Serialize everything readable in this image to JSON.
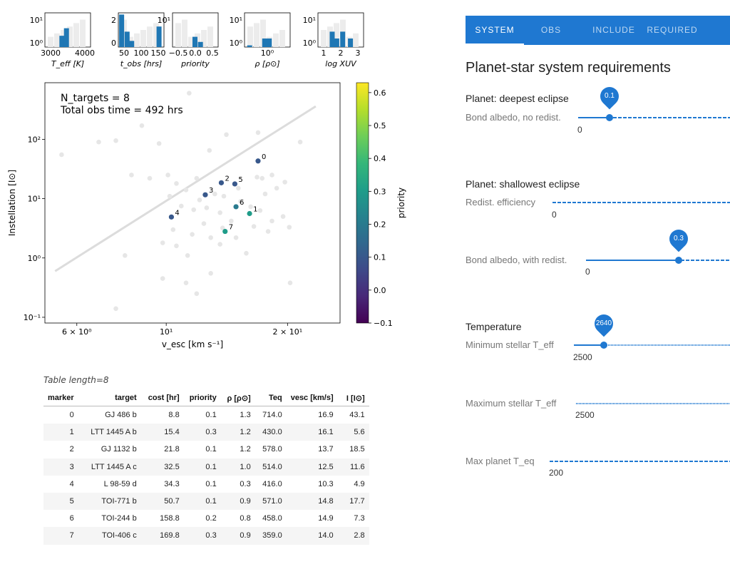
{
  "hist_panels": [
    {
      "xlabel": "T_eff [K]",
      "yticks": [
        "10¹",
        "10⁰"
      ],
      "xticks": [
        "3000",
        "4000"
      ],
      "bars": [
        {
          "x": 0.38,
          "h": 0.33
        },
        {
          "x": 0.48,
          "h": 0.55
        }
      ]
    },
    {
      "xlabel": "t_obs [hrs]",
      "yticks": [
        "2",
        "0"
      ],
      "xticks": [
        "50",
        "100",
        "150"
      ],
      "bars": [
        {
          "x": 0.08,
          "h": 0.95
        },
        {
          "x": 0.2,
          "h": 0.45
        },
        {
          "x": 0.3,
          "h": 0.18
        },
        {
          "x": 0.9,
          "h": 0.6
        }
      ]
    },
    {
      "xlabel": "priority",
      "yticks": [
        "10¹"
      ],
      "xticks": [
        "−0.5",
        "0.0",
        "0.5"
      ],
      "bars": [
        {
          "x": 0.5,
          "h": 0.3
        },
        {
          "x": 0.62,
          "h": 0.15
        }
      ]
    },
    {
      "xlabel": "ρ [ρ⊙]",
      "yticks": [
        "10¹",
        "10⁰"
      ],
      "xticks": [
        "10⁰"
      ],
      "bars": [
        {
          "x": 0.45,
          "h": 0.25
        },
        {
          "x": 0.55,
          "h": 0.25
        },
        {
          "x": 0.12,
          "h": 0.05
        }
      ]
    },
    {
      "xlabel": "log XUV",
      "yticks": [
        "10¹",
        "10⁰"
      ],
      "xticks": [
        "1",
        "2",
        "3"
      ],
      "bars": [
        {
          "x": 0.32,
          "h": 0.45
        },
        {
          "x": 0.42,
          "h": 0.25
        },
        {
          "x": 0.55,
          "h": 0.45
        },
        {
          "x": 0.72,
          "h": 0.25
        }
      ]
    }
  ],
  "chart_data": {
    "type": "scatter",
    "xlabel": "v_esc [km s⁻¹]",
    "ylabel": "Instellation [I⊙]",
    "xscale": "log",
    "yscale": "log",
    "xlim": [
      5.0,
      27.0
    ],
    "ylim": [
      0.08,
      900
    ],
    "xticks": [
      "6 × 10⁰",
      "10¹",
      "2 × 10¹"
    ],
    "yticks": [
      "10⁻¹",
      "10⁰",
      "10¹",
      "10²"
    ],
    "colorbar": {
      "label": "priority",
      "min": -0.1,
      "max": 0.63,
      "ticks": [
        "−0.1",
        "0.0",
        "0.1",
        "0.2",
        "0.3",
        "0.4",
        "0.5",
        "0.6"
      ]
    },
    "annotation_line1": "N_targets = 8",
    "annotation_line2": "Total obs time = 492 hrs",
    "trend_line": [
      [
        5.3,
        0.6
      ],
      [
        23.5,
        360
      ]
    ],
    "background_points": [
      [
        5.5,
        55
      ],
      [
        6.8,
        90
      ],
      [
        7.5,
        95
      ],
      [
        8.7,
        170
      ],
      [
        9.6,
        85
      ],
      [
        11.4,
        600
      ],
      [
        8.2,
        25
      ],
      [
        9.1,
        22
      ],
      [
        10.1,
        25
      ],
      [
        10.6,
        18
      ],
      [
        11.2,
        14
      ],
      [
        11.9,
        22
      ],
      [
        12.8,
        65
      ],
      [
        14.1,
        120
      ],
      [
        16.9,
        130
      ],
      [
        21.5,
        90
      ],
      [
        13.2,
        12
      ],
      [
        12.1,
        9.5
      ],
      [
        13.9,
        11
      ],
      [
        15.1,
        15
      ],
      [
        17.6,
        12
      ],
      [
        18.8,
        15
      ],
      [
        19.7,
        19
      ],
      [
        10.2,
        11
      ],
      [
        10.9,
        7.5
      ],
      [
        11.7,
        6.5
      ],
      [
        12.6,
        7
      ],
      [
        13.6,
        5.8
      ],
      [
        14.5,
        4.2
      ],
      [
        15.3,
        9
      ],
      [
        16.2,
        7.3
      ],
      [
        17.1,
        6.3
      ],
      [
        18.3,
        4.2
      ],
      [
        19.5,
        5
      ],
      [
        10.4,
        3
      ],
      [
        11.6,
        2.5
      ],
      [
        12.4,
        3.8
      ],
      [
        13.8,
        3.2
      ],
      [
        14.9,
        2.2
      ],
      [
        16.5,
        3.4
      ],
      [
        17.9,
        2.8
      ],
      [
        20.2,
        3.3
      ],
      [
        9.8,
        1.8
      ],
      [
        10.6,
        1.6
      ],
      [
        11.3,
        1.1
      ],
      [
        12.9,
        2.2
      ],
      [
        13.6,
        1.7
      ],
      [
        15.8,
        1.2
      ],
      [
        7.9,
        1.1
      ],
      [
        9.8,
        0.45
      ],
      [
        11.2,
        0.38
      ],
      [
        11.9,
        0.25
      ],
      [
        12.9,
        0.55
      ],
      [
        20.3,
        0.38
      ],
      [
        7.5,
        0.14
      ],
      [
        18.3,
        25
      ],
      [
        17.3,
        22
      ],
      [
        16.8,
        23
      ]
    ],
    "points": [
      {
        "label": "0",
        "x": 16.9,
        "y": 43.1,
        "priority": 0.1
      },
      {
        "label": "1",
        "x": 16.1,
        "y": 5.6,
        "priority": 0.3
      },
      {
        "label": "2",
        "x": 13.7,
        "y": 18.5,
        "priority": 0.1
      },
      {
        "label": "3",
        "x": 12.5,
        "y": 11.6,
        "priority": 0.1
      },
      {
        "label": "4",
        "x": 10.3,
        "y": 4.9,
        "priority": 0.1
      },
      {
        "label": "5",
        "x": 14.8,
        "y": 17.7,
        "priority": 0.1
      },
      {
        "label": "6",
        "x": 14.9,
        "y": 7.3,
        "priority": 0.2
      },
      {
        "label": "7",
        "x": 14.0,
        "y": 2.8,
        "priority": 0.3
      }
    ]
  },
  "table": {
    "title": "Table length=8",
    "headers": [
      "marker",
      "target",
      "cost [hr]",
      "priority",
      "ρ [ρ⊙]",
      "Teq",
      "vesc [km/s]",
      "I [I⊙]"
    ],
    "rows": [
      [
        "0",
        "GJ 486 b",
        "8.8",
        "0.1",
        "1.3",
        "714.0",
        "16.9",
        "43.1"
      ],
      [
        "1",
        "LTT 1445 A b",
        "15.4",
        "0.3",
        "1.2",
        "430.0",
        "16.1",
        "5.6"
      ],
      [
        "2",
        "GJ 1132 b",
        "21.8",
        "0.1",
        "1.2",
        "578.0",
        "13.7",
        "18.5"
      ],
      [
        "3",
        "LTT 1445 A c",
        "32.5",
        "0.1",
        "1.0",
        "514.0",
        "12.5",
        "11.6"
      ],
      [
        "4",
        "L 98-59 d",
        "34.3",
        "0.1",
        "0.3",
        "416.0",
        "10.3",
        "4.9"
      ],
      [
        "5",
        "TOI-771 b",
        "50.7",
        "0.1",
        "0.9",
        "571.0",
        "14.8",
        "17.7"
      ],
      [
        "6",
        "TOI-244 b",
        "158.8",
        "0.2",
        "0.8",
        "458.0",
        "14.9",
        "7.3"
      ],
      [
        "7",
        "TOI-406 c",
        "169.8",
        "0.3",
        "0.9",
        "359.0",
        "14.0",
        "2.8"
      ]
    ]
  },
  "tabs": [
    "SYSTEM",
    "OBS",
    "INCLUDE",
    "REQUIRED"
  ],
  "active_tab": "SYSTEM",
  "panel_title": "Planet-star system requirements",
  "sections": {
    "deepest": {
      "title": "Planet: deepest eclipse",
      "label": "Bond albedo, no redist.",
      "min": "0",
      "value": "0.1"
    },
    "shallowest": {
      "title": "Planet: shallowest eclipse",
      "label1": "Redist. efficiency",
      "min1": "0",
      "label2": "Bond albedo, with redist.",
      "min2": "0",
      "value2": "0.3"
    },
    "temperature": {
      "title": "Temperature",
      "label1": "Minimum stellar T_eff",
      "min1": "2500",
      "value1": "2640",
      "label2": "Maximum stellar T_eff",
      "min2": "2500",
      "label3": "Max planet T_eq",
      "min3": "200"
    }
  },
  "colors": {
    "accent": "#1f78d1",
    "tab_bg": "#1f78d1"
  }
}
